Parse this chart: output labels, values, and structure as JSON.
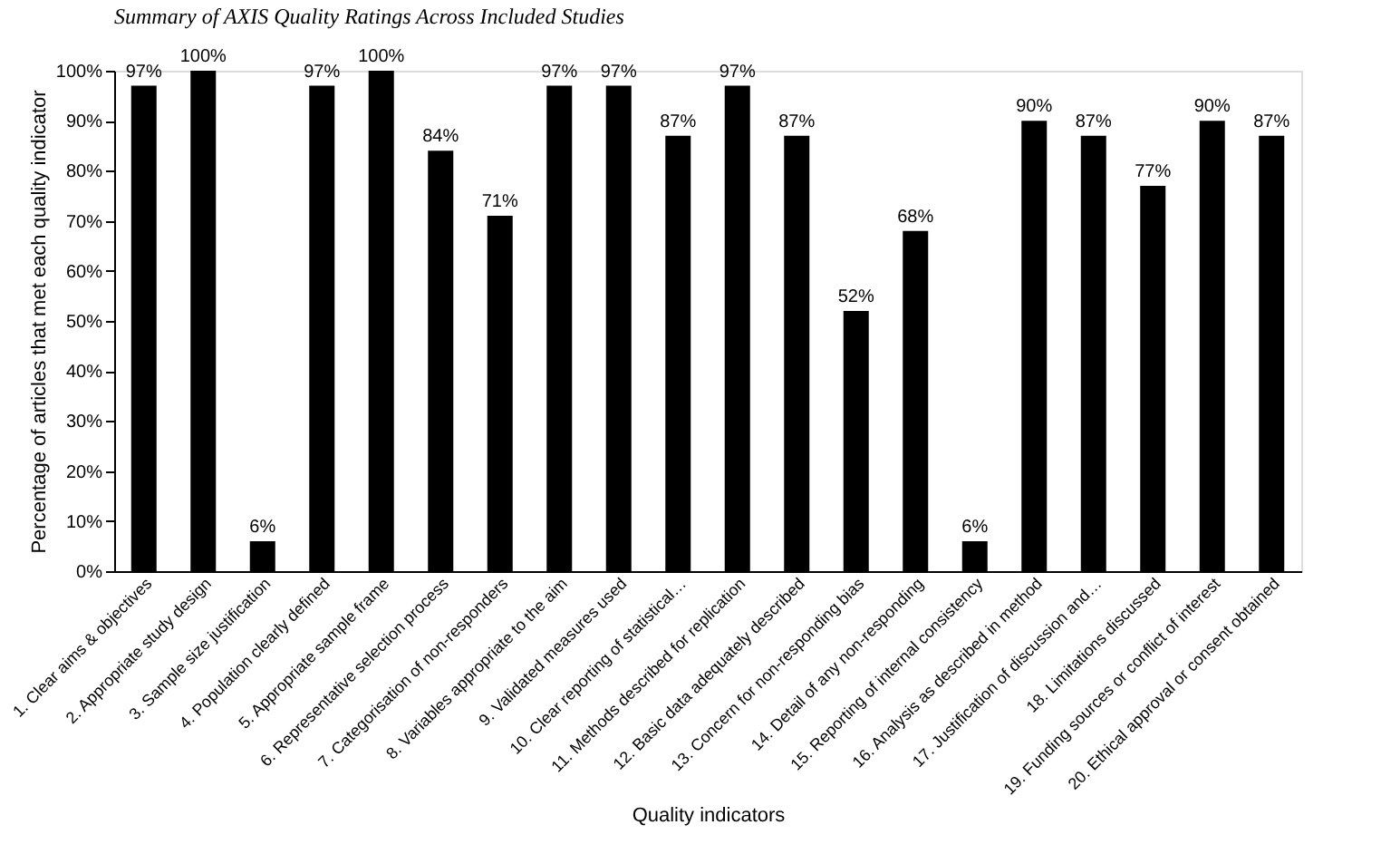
{
  "chart_data": {
    "type": "bar",
    "title": "Summary of AXIS Quality Ratings Across Included Studies",
    "xlabel": "Quality indicators",
    "ylabel": "Percentage of articles that met each quality indicator",
    "categories": [
      "1. Clear aims & objectives",
      "2. Appropriate study design",
      "3. Sample size justification",
      "4. Population clearly defined",
      "5. Appropriate sample frame",
      "6. Representative selection process",
      "7. Categorisation of non-responders",
      "8. Variables appropriate to the aim",
      "9. Validated measures used",
      "10. Clear reporting of statistical…",
      "11. Methods described for replication",
      "12. Basic data adequately described",
      "13. Concern for non-responding bias",
      "14. Detail of any non-responding",
      "15. Reporting of internal consistency",
      "16. Analysis as described in method",
      "17. Justification of discussion and…",
      "18. Limitations discussed",
      "19. Funding sources or conflict of interest",
      "20. Ethical approval or consent obtained"
    ],
    "values": [
      97,
      100,
      6,
      97,
      100,
      84,
      71,
      97,
      97,
      87,
      97,
      87,
      52,
      68,
      6,
      90,
      87,
      77,
      90,
      87
    ],
    "value_labels": [
      "97%",
      "100%",
      "6%",
      "97%",
      "100%",
      "84%",
      "71%",
      "97%",
      "97%",
      "87%",
      "97%",
      "87%",
      "52%",
      "68%",
      "6%",
      "90%",
      "87%",
      "77%",
      "90%",
      "87%"
    ],
    "color": "#000000",
    "ylim": [
      0,
      100
    ],
    "yticks": [
      {
        "value": 0,
        "label": "0%"
      },
      {
        "value": 10,
        "label": "10%"
      },
      {
        "value": 20,
        "label": "20%"
      },
      {
        "value": 30,
        "label": "30%"
      },
      {
        "value": 40,
        "label": "40%"
      },
      {
        "value": 50,
        "label": "50%"
      },
      {
        "value": 60,
        "label": "60%"
      },
      {
        "value": 70,
        "label": "70%"
      },
      {
        "value": 80,
        "label": "80%"
      },
      {
        "value": 90,
        "label": "90%"
      },
      {
        "value": 100,
        "label": "100%"
      }
    ],
    "grid": false
  }
}
